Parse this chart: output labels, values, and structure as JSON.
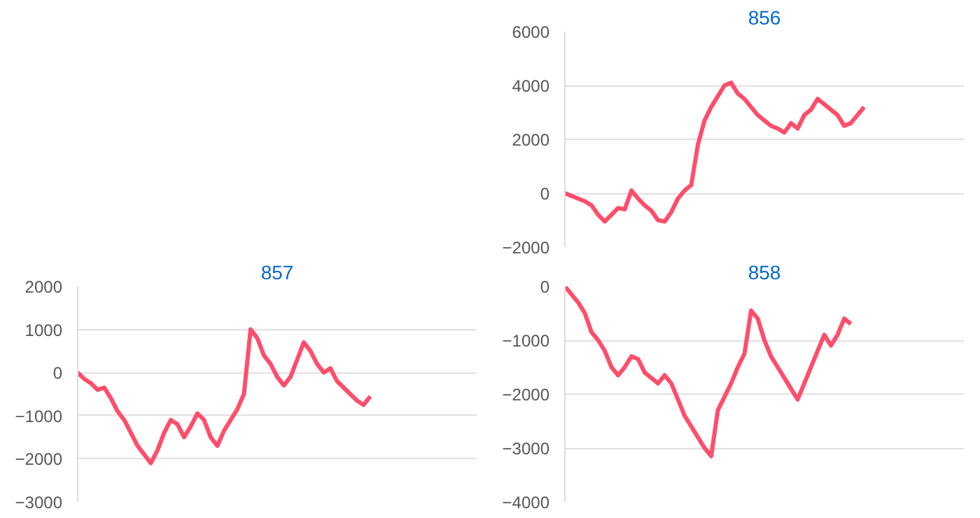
{
  "chart_data": [
    {
      "type": "line",
      "title": "856",
      "tick_labels": "y",
      "grid": "y",
      "ylim": [
        -2000,
        6000
      ],
      "yticks": [
        -2000,
        0,
        2000,
        4000,
        6000
      ],
      "categories": [
        null,
        null,
        null,
        null,
        null,
        null,
        null,
        null,
        null,
        null,
        null,
        null,
        null,
        null,
        null,
        null,
        null,
        null,
        null,
        null,
        null,
        null,
        null,
        null,
        null,
        null,
        null,
        null,
        null,
        null,
        null,
        null,
        null,
        null,
        null,
        null,
        null,
        null,
        null,
        null,
        null,
        null,
        null,
        null,
        null,
        null,
        null,
        null,
        null,
        null,
        null,
        null,
        null,
        null,
        null,
        null,
        null,
        null,
        null,
        null,
        null
      ],
      "series": [
        {
          "color": "#ff4d6a",
          "values": [
            0,
            -100,
            -200,
            -300,
            -450,
            -800,
            -1050,
            -800,
            -550,
            -600,
            100,
            -200,
            -450,
            -650,
            -1000,
            -1050,
            -700,
            -200,
            100,
            300,
            1800,
            2700,
            3200,
            3600,
            4000,
            4100,
            3700,
            3500,
            3200,
            2900,
            2700,
            2500,
            2400,
            2250,
            2600,
            2400,
            2900,
            3100,
            3500,
            3300,
            3100,
            2900,
            2500,
            2600,
            2900,
            3200,
            null,
            null,
            null,
            null,
            null,
            null,
            null,
            null,
            null,
            null,
            null,
            null,
            null,
            null,
            null
          ]
        }
      ]
    },
    {
      "type": "line",
      "title": "857",
      "tick_labels": "y",
      "grid": "y",
      "ylim": [
        -3000,
        2000
      ],
      "yticks": [
        -3000,
        -2000,
        -1000,
        0,
        1000,
        2000
      ],
      "categories": [
        null,
        null,
        null,
        null,
        null,
        null,
        null,
        null,
        null,
        null,
        null,
        null,
        null,
        null,
        null,
        null,
        null,
        null,
        null,
        null,
        null,
        null,
        null,
        null,
        null,
        null,
        null,
        null,
        null,
        null,
        null,
        null,
        null,
        null,
        null,
        null,
        null,
        null,
        null,
        null,
        null,
        null,
        null,
        null,
        null,
        null,
        null,
        null,
        null,
        null,
        null,
        null,
        null,
        null,
        null,
        null,
        null,
        null,
        null,
        null,
        null
      ],
      "series": [
        {
          "color": "#ff4d6a",
          "values": [
            0,
            -150,
            -250,
            -400,
            -350,
            -600,
            -900,
            -1100,
            -1400,
            -1700,
            -1900,
            -2100,
            -1800,
            -1400,
            -1100,
            -1200,
            -1500,
            -1250,
            -950,
            -1100,
            -1500,
            -1700,
            -1350,
            -1100,
            -850,
            -500,
            1000,
            800,
            400,
            200,
            -100,
            -300,
            -100,
            300,
            700,
            500,
            200,
            0,
            100,
            -200,
            -350,
            -500,
            -650,
            -750,
            -550,
            null,
            null,
            null,
            null,
            null,
            null,
            null,
            null,
            null,
            null,
            null,
            null,
            null,
            null,
            null,
            null
          ]
        }
      ]
    },
    {
      "type": "line",
      "title": "858",
      "tick_labels": "y",
      "grid": "y",
      "ylim": [
        -4000,
        0
      ],
      "yticks": [
        -4000,
        -3000,
        -2000,
        -1000,
        0
      ],
      "categories": [
        null,
        null,
        null,
        null,
        null,
        null,
        null,
        null,
        null,
        null,
        null,
        null,
        null,
        null,
        null,
        null,
        null,
        null,
        null,
        null,
        null,
        null,
        null,
        null,
        null,
        null,
        null,
        null,
        null,
        null,
        null,
        null,
        null,
        null,
        null,
        null,
        null,
        null,
        null,
        null,
        null,
        null,
        null,
        null,
        null,
        null,
        null,
        null,
        null,
        null,
        null,
        null,
        null,
        null,
        null,
        null,
        null,
        null,
        null,
        null,
        null
      ],
      "series": [
        {
          "color": "#ff4d6a",
          "values": [
            0,
            -150,
            -300,
            -500,
            -850,
            -1000,
            -1200,
            -1500,
            -1650,
            -1500,
            -1300,
            -1350,
            -1600,
            -1700,
            -1800,
            -1650,
            -1800,
            -2100,
            -2400,
            -2600,
            -2800,
            -3000,
            -3150,
            -2300,
            -2050,
            -1800,
            -1500,
            -1250,
            -450,
            -600,
            -1000,
            -1300,
            -1500,
            -1700,
            -1900,
            -2100,
            -1800,
            -1500,
            -1200,
            -900,
            -1100,
            -900,
            -600,
            -700,
            null,
            null,
            null,
            null,
            null,
            null,
            null,
            null,
            null,
            null,
            null,
            null,
            null,
            null,
            null,
            null,
            null
          ]
        }
      ]
    }
  ]
}
